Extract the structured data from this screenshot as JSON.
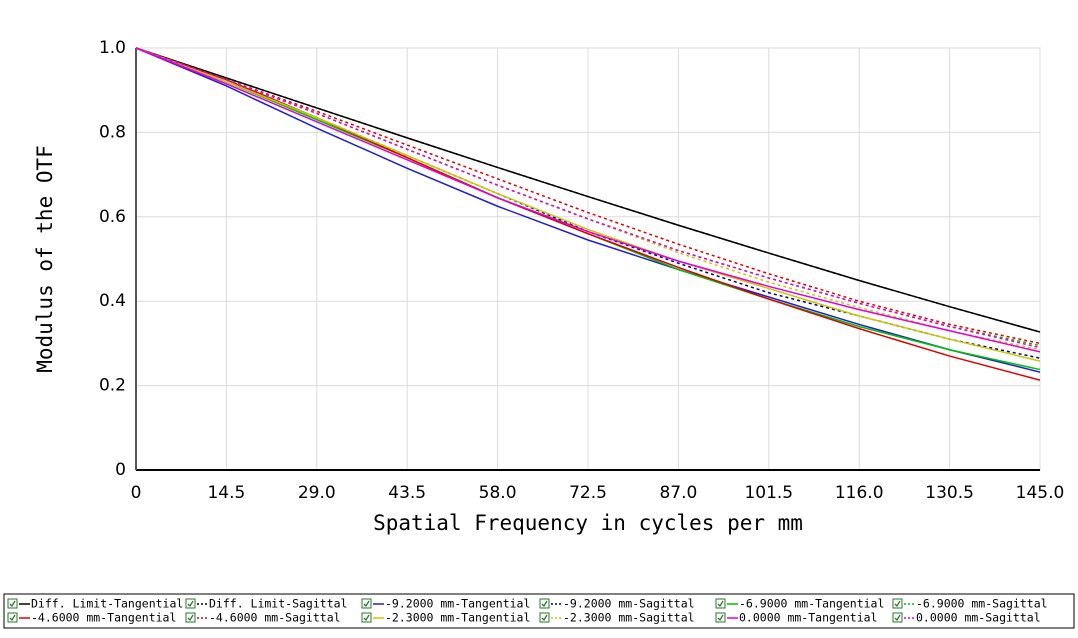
{
  "chart_data": {
    "type": "line",
    "xlabel": "Spatial Frequency in cycles per mm",
    "ylabel": "Modulus of the OTF",
    "x": [
      0,
      14.5,
      29,
      43.5,
      58,
      72.5,
      87,
      101.5,
      116,
      130.5,
      145
    ],
    "xlim": [
      0,
      145
    ],
    "ylim": [
      0,
      1
    ],
    "xticks": [
      0,
      14.5,
      {
        "value": 29,
        "label": "29.0"
      },
      43.5,
      {
        "value": 58,
        "label": "58.0"
      },
      72.5,
      {
        "value": 87,
        "label": "87.0"
      },
      101.5,
      {
        "value": 116,
        "label": "116.0"
      },
      130.5,
      {
        "value": 145,
        "label": "145.0"
      }
    ],
    "yticks": [
      0,
      0.2,
      0.4,
      0.6,
      0.8,
      {
        "value": 1,
        "label": "1.0"
      }
    ],
    "grid": true,
    "legend": "bottom",
    "series": [
      {
        "name": "Diff. Limit-Tangential",
        "color": "#000000",
        "style": "solid",
        "values": [
          1,
          0.929,
          0.858,
          0.787,
          0.717,
          0.648,
          0.58,
          0.514,
          0.449,
          0.387,
          0.327
        ]
      },
      {
        "name": "Diff. Limit-Sagittal",
        "color": "#000000",
        "style": "dotted",
        "values": [
          1,
          0.929,
          0.858,
          0.787,
          0.717,
          0.648,
          0.58,
          0.514,
          0.449,
          0.387,
          0.327
        ]
      },
      {
        "name": "-9.2000 mm-Tangential",
        "color": "#2020d0",
        "style": "solid",
        "values": [
          1,
          0.91,
          0.81,
          0.715,
          0.625,
          0.545,
          0.475,
          0.41,
          0.345,
          0.285,
          0.232
        ]
      },
      {
        "name": "-9.2000 mm-Sagittal",
        "color": "#000080",
        "style": "dotted",
        "values": [
          1,
          0.92,
          0.835,
          0.745,
          0.655,
          0.565,
          0.49,
          0.42,
          0.365,
          0.31,
          0.265
        ]
      },
      {
        "name": "-6.9000 mm-Tangential",
        "color": "#00c000",
        "style": "solid",
        "values": [
          1,
          0.92,
          0.83,
          0.74,
          0.645,
          0.56,
          0.475,
          0.405,
          0.34,
          0.285,
          0.238
        ]
      },
      {
        "name": "-6.9000 mm-Sagittal",
        "color": "#00c000",
        "style": "dotted",
        "values": [
          1,
          0.925,
          0.845,
          0.76,
          0.675,
          0.595,
          0.52,
          0.455,
          0.395,
          0.34,
          0.295
        ]
      },
      {
        "name": "-4.6000 mm-Tangential",
        "color": "#e00000",
        "style": "solid",
        "values": [
          1,
          0.925,
          0.835,
          0.74,
          0.645,
          0.56,
          0.48,
          0.405,
          0.335,
          0.27,
          0.213
        ]
      },
      {
        "name": "-4.6000 mm-Sagittal",
        "color": "#e00000",
        "style": "dotted",
        "values": [
          1,
          0.925,
          0.85,
          0.77,
          0.69,
          0.61,
          0.535,
          0.465,
          0.4,
          0.345,
          0.3
        ]
      },
      {
        "name": "-2.3000 mm-Tangential",
        "color": "#c8c800",
        "style": "solid",
        "values": [
          1,
          0.92,
          0.835,
          0.745,
          0.655,
          0.57,
          0.495,
          0.43,
          0.365,
          0.31,
          0.258
        ]
      },
      {
        "name": "-2.3000 mm-Sagittal",
        "color": "#c8c800",
        "style": "dotted",
        "values": [
          1,
          0.925,
          0.845,
          0.76,
          0.675,
          0.595,
          0.515,
          0.445,
          0.385,
          0.33,
          0.285
        ]
      },
      {
        "name": "0.0000 mm-Tangential",
        "color": "#e000e0",
        "style": "solid",
        "values": [
          1,
          0.915,
          0.825,
          0.735,
          0.645,
          0.565,
          0.495,
          0.435,
          0.38,
          0.33,
          0.28
        ]
      },
      {
        "name": "0.0000 mm-Sagittal",
        "color": "#e000e0",
        "style": "dotted",
        "values": [
          1,
          0.925,
          0.845,
          0.76,
          0.675,
          0.595,
          0.52,
          0.455,
          0.395,
          0.34,
          0.29
        ]
      }
    ]
  }
}
